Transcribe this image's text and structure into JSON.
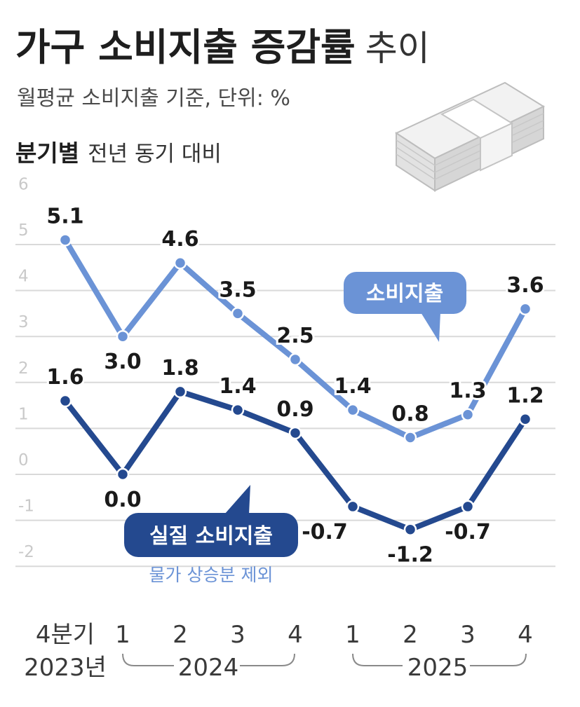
{
  "title_bold": "가구 소비지출 증감률",
  "title_light": "추이",
  "subtitle": "월평균 소비지출 기준, 단위: %",
  "section_bold": "분기별",
  "section_light": "전년 동기 대비",
  "colors": {
    "consumption": "#6b93d6",
    "real_consumption": "#24498f",
    "grid": "#d9d9d9"
  },
  "chart_data": {
    "type": "line",
    "categories": [
      "4분기 2023년",
      "2024 1",
      "2024 2",
      "2024 3",
      "2024 4",
      "2025 1",
      "2025 2",
      "2025 3",
      "2025 4"
    ],
    "x_tick_labels": [
      "4분기",
      "1",
      "2",
      "3",
      "4",
      "1",
      "2",
      "3",
      "4"
    ],
    "x_group_labels": [
      "2023년",
      "2024",
      "2025"
    ],
    "ylim": [
      -2,
      6
    ],
    "y_ticks": [
      -2,
      -1,
      0,
      1,
      2,
      3,
      4,
      5,
      6
    ],
    "y_tick_labels": [
      "-2",
      "-1",
      "0",
      "1",
      "2",
      "3",
      "4",
      "5",
      "6"
    ],
    "grid": true,
    "series": [
      {
        "name": "소비지출",
        "values": [
          5.1,
          3.0,
          4.6,
          3.5,
          2.5,
          1.4,
          0.8,
          1.3,
          3.6
        ],
        "labels": [
          "5.1",
          "3.0",
          "4.6",
          "3.5",
          "2.5",
          "1.4",
          "0.8",
          "1.3",
          "3.6"
        ]
      },
      {
        "name": "실질 소비지출",
        "note": "물가 상승분 제외",
        "values": [
          1.6,
          0.0,
          1.8,
          1.4,
          0.9,
          -0.7,
          -1.2,
          -0.7,
          1.2
        ],
        "labels": [
          "1.6",
          "0.0",
          "1.8",
          "1.4",
          "0.9",
          "-0.7",
          "-1.2",
          "-0.7",
          "1.2"
        ]
      }
    ]
  }
}
